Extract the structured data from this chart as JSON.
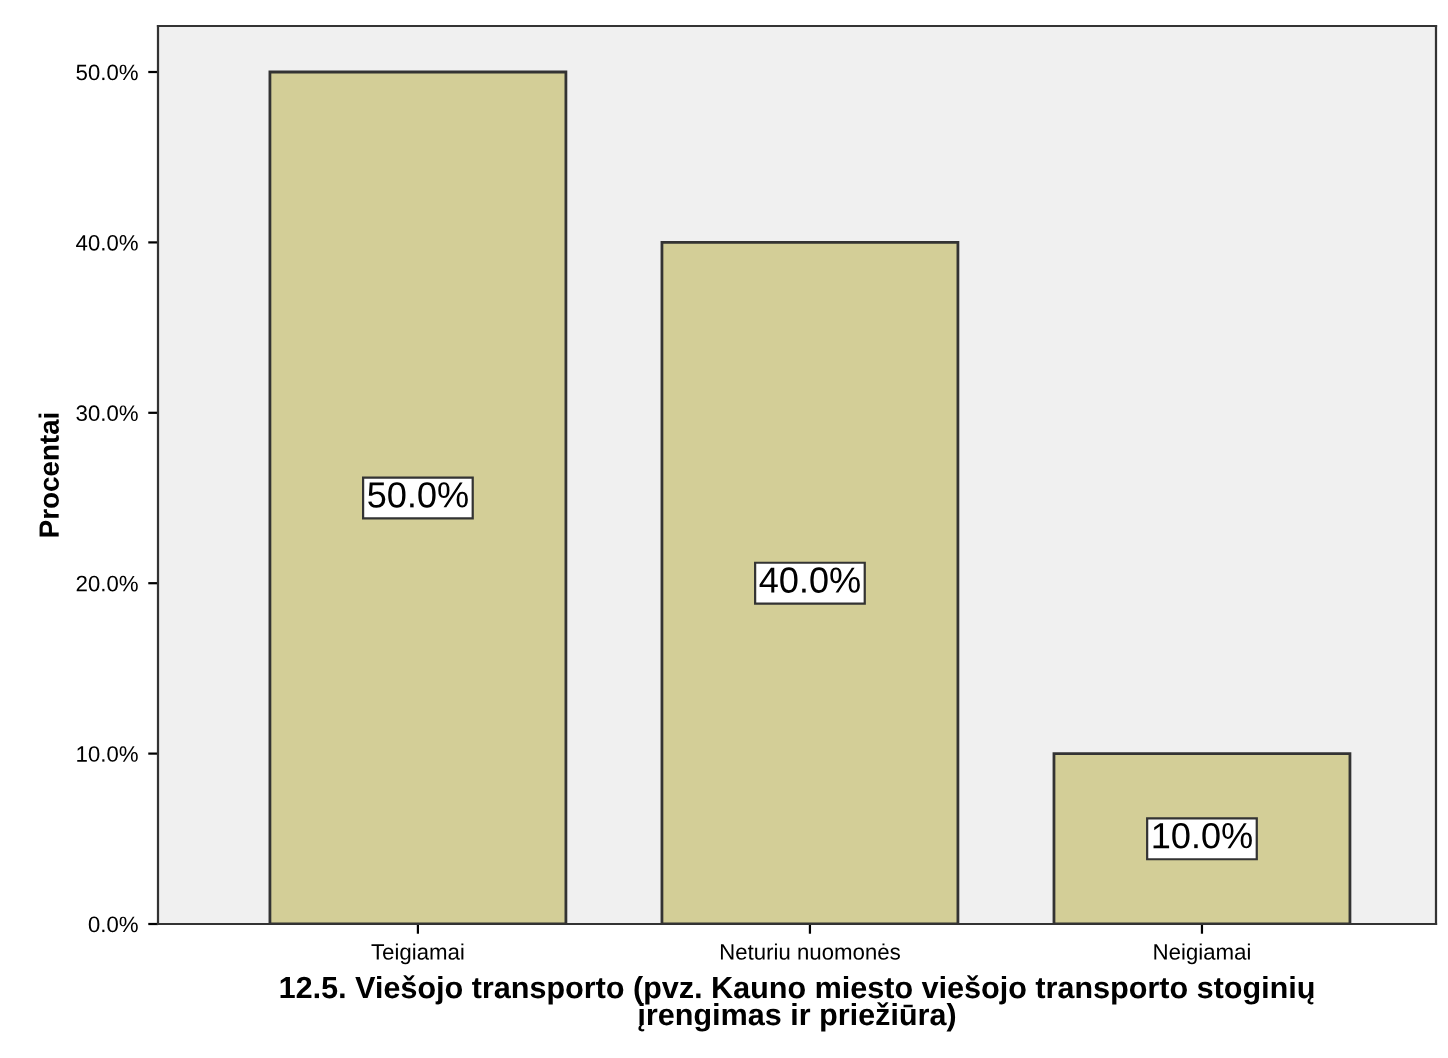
{
  "chart_data": {
    "type": "bar",
    "xlabel": "12.5. Viešojo transporto (pvz. Kauno miesto viešojo transporto stoginių\nįrengimas ir priežiūra)",
    "ylabel": "Procentai",
    "categories": [
      "Teigiamai",
      "Neturiu nuomonės",
      "Neigiamai"
    ],
    "values": [
      50.0,
      40.0,
      10.0
    ],
    "value_labels": [
      "50.0%",
      "40.0%",
      "10.0%"
    ],
    "color": "#d3ce97",
    "ylim": [
      0,
      52.7
    ],
    "yticks": [
      {
        "value": 0,
        "label": "0.0%"
      },
      {
        "value": 10,
        "label": "10.0%"
      },
      {
        "value": 20,
        "label": "20.0%"
      },
      {
        "value": 30,
        "label": "30.0%"
      },
      {
        "value": 40,
        "label": "40.0%"
      },
      {
        "value": 50,
        "label": "50.0%"
      }
    ],
    "grid": false
  }
}
